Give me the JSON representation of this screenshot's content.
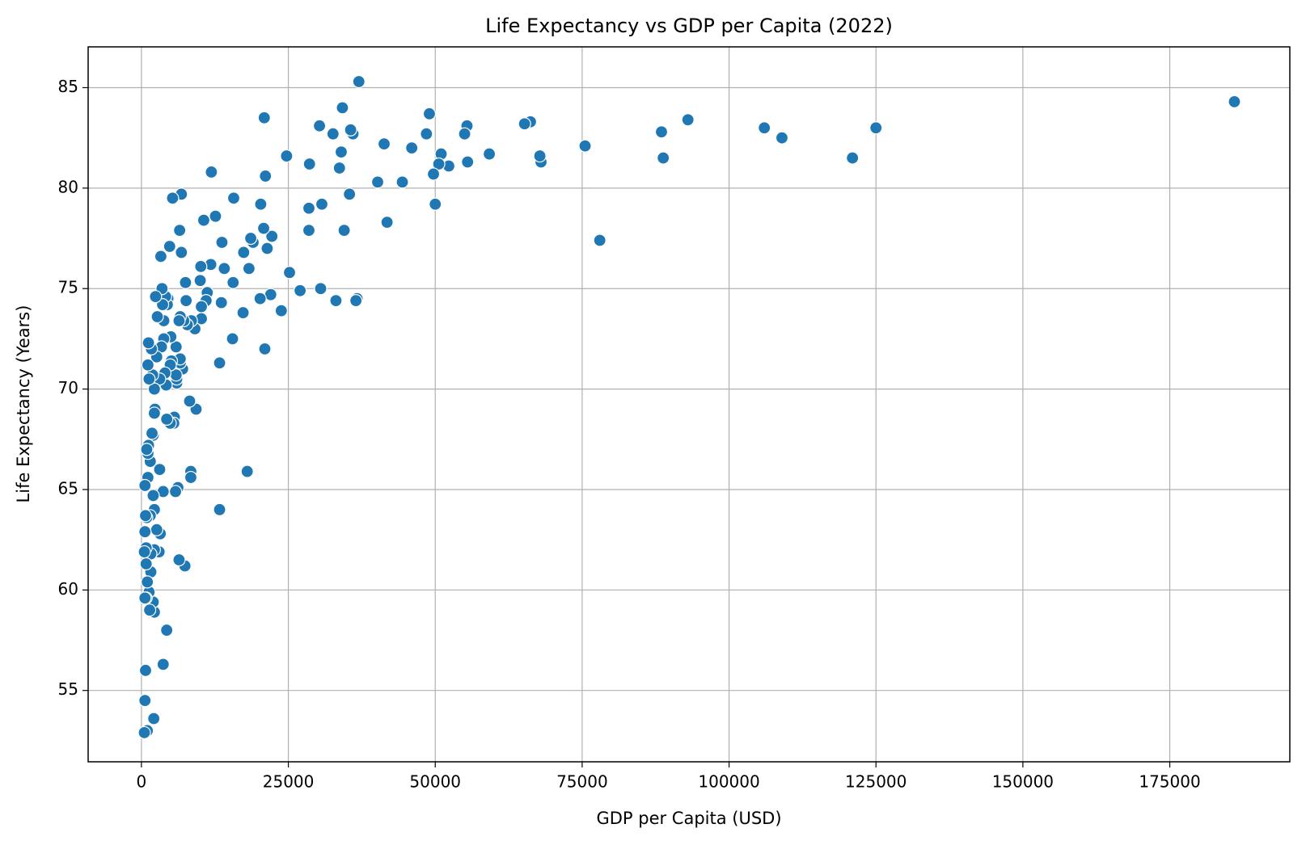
{
  "chart_data": {
    "type": "scatter",
    "title": "Life Expectancy vs GDP per Capita (2022)",
    "xlabel": "GDP per Capita (USD)",
    "ylabel": "Life Expectancy (Years)",
    "color": "#1f77b4",
    "grid": true,
    "xlim": [
      -9070,
      195430
    ],
    "ylim": [
      51.45,
      87.03
    ],
    "xticks": [
      0,
      25000,
      50000,
      75000,
      100000,
      125000,
      150000,
      175000
    ],
    "yticks": [
      55,
      60,
      65,
      70,
      75,
      80,
      85
    ],
    "x": [
      186000,
      125000,
      121000,
      109000,
      106000,
      93000,
      88500,
      88800,
      78000,
      75500,
      68000,
      67800,
      66200,
      65200,
      59200,
      55500,
      55400,
      55000,
      52300,
      51000,
      50600,
      49700,
      50000,
      49000,
      48500,
      46000,
      44400,
      41800,
      41300,
      40200,
      37000,
      36700,
      36500,
      36000,
      35600,
      35400,
      34500,
      34200,
      34000,
      33700,
      33100,
      32600,
      30700,
      30500,
      30300,
      28600,
      28500,
      28500,
      27000,
      25200,
      24700,
      23800,
      22200,
      22000,
      21400,
      21100,
      21000,
      20900,
      20800,
      20300,
      20200,
      19000,
      18600,
      18300,
      18000,
      17400,
      17300,
      15700,
      15600,
      15500,
      14100,
      13700,
      13600,
      13300,
      13300,
      12600,
      11900,
      11800,
      11200,
      11000,
      10600,
      10200,
      10200,
      10100,
      10000,
      9300,
      9100,
      8500,
      8400,
      8400,
      8200,
      7800,
      7600,
      7500,
      7400,
      7200,
      7000,
      6800,
      6800,
      6600,
      6600,
      6600,
      6500,
      6400,
      6400,
      6200,
      6000,
      6000,
      5900,
      5900,
      5800,
      5600,
      5500,
      5300,
      5100,
      5000,
      4900,
      4900,
      4800,
      4500,
      4400,
      4300,
      4300,
      4200,
      4100,
      4000,
      3800,
      3800,
      3700,
      3700,
      3600,
      3500,
      3400,
      3300,
      3200,
      3100,
      3100,
      3000,
      2700,
      2600,
      2600,
      2400,
      2300,
      2200,
      2200,
      2200,
      2200,
      2200,
      2100,
      2000,
      2000,
      2000,
      1900,
      1800,
      1700,
      1600,
      1600,
      1500,
      1500,
      1400,
      1300,
      1300,
      1200,
      1200,
      1100,
      1100,
      1100,
      1000,
      1000,
      900,
      900,
      800,
      800,
      800,
      700,
      700,
      600,
      600,
      600,
      500,
      600,
      500
    ],
    "values": [
      84.3,
      83.0,
      81.5,
      82.5,
      83.0,
      83.4,
      82.8,
      81.5,
      77.4,
      82.1,
      81.3,
      81.6,
      83.3,
      83.2,
      81.7,
      81.3,
      83.1,
      82.7,
      81.1,
      81.7,
      81.2,
      80.7,
      79.2,
      83.7,
      82.7,
      82.0,
      80.3,
      78.3,
      82.2,
      80.3,
      85.3,
      74.5,
      74.4,
      82.7,
      82.9,
      79.7,
      77.9,
      84.0,
      81.8,
      81.0,
      74.4,
      82.7,
      79.2,
      75.0,
      83.1,
      81.2,
      79.0,
      77.9,
      74.9,
      75.8,
      81.6,
      73.9,
      77.6,
      74.7,
      77.0,
      80.6,
      72.0,
      83.5,
      78.0,
      79.2,
      74.5,
      77.3,
      77.5,
      76.0,
      65.9,
      76.8,
      73.8,
      79.5,
      75.3,
      72.5,
      76.0,
      77.3,
      74.3,
      71.3,
      64.0,
      78.6,
      80.8,
      76.2,
      74.8,
      74.4,
      78.4,
      74.1,
      73.5,
      76.1,
      75.4,
      69.0,
      73.0,
      73.4,
      65.9,
      65.6,
      69.4,
      73.2,
      74.4,
      75.3,
      61.2,
      73.4,
      71.0,
      79.7,
      76.8,
      73.6,
      71.3,
      71.5,
      77.9,
      73.4,
      61.5,
      65.1,
      70.3,
      70.5,
      70.7,
      72.1,
      64.9,
      68.6,
      68.3,
      79.5,
      71.4,
      72.6,
      71.2,
      68.3,
      77.1,
      74.5,
      74.2,
      68.5,
      58.0,
      70.2,
      74.6,
      70.8,
      73.4,
      72.5,
      56.3,
      64.9,
      74.2,
      75.0,
      72.1,
      76.6,
      62.8,
      66.0,
      70.5,
      61.9,
      73.6,
      71.6,
      63.0,
      74.6,
      69.0,
      70.0,
      68.8,
      64.0,
      62.0,
      58.9,
      53.6,
      64.7,
      67.7,
      59.4,
      70.7,
      67.8,
      72.0,
      61.8,
      60.9,
      63.7,
      66.4,
      59.0,
      70.5,
      59.9,
      67.2,
      72.3,
      71.2,
      65.6,
      66.8,
      53.0,
      60.4,
      67.0,
      63.6,
      61.3,
      62.1,
      59.6,
      63.7,
      56.0,
      65.2,
      62.9,
      54.5,
      61.9,
      59.6,
      52.9
    ]
  }
}
